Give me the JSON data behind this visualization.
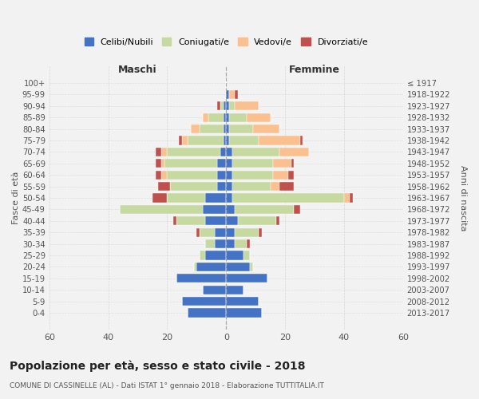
{
  "age_groups": [
    "0-4",
    "5-9",
    "10-14",
    "15-19",
    "20-24",
    "25-29",
    "30-34",
    "35-39",
    "40-44",
    "45-49",
    "50-54",
    "55-59",
    "60-64",
    "65-69",
    "70-74",
    "75-79",
    "80-84",
    "85-89",
    "90-94",
    "95-99",
    "100+"
  ],
  "birth_years": [
    "2013-2017",
    "2008-2012",
    "2003-2007",
    "1998-2002",
    "1993-1997",
    "1988-1992",
    "1983-1987",
    "1978-1982",
    "1973-1977",
    "1968-1972",
    "1963-1967",
    "1958-1962",
    "1953-1957",
    "1948-1952",
    "1943-1947",
    "1938-1942",
    "1933-1937",
    "1928-1932",
    "1923-1927",
    "1918-1922",
    "≤ 1917"
  ],
  "males": {
    "celibi": [
      13,
      15,
      8,
      17,
      10,
      7,
      4,
      4,
      7,
      8,
      7,
      3,
      3,
      3,
      2,
      1,
      1,
      1,
      1,
      0,
      0
    ],
    "coniugati": [
      0,
      0,
      0,
      0,
      1,
      2,
      3,
      5,
      10,
      28,
      13,
      16,
      17,
      18,
      18,
      12,
      8,
      5,
      1,
      0,
      0
    ],
    "vedovi": [
      0,
      0,
      0,
      0,
      0,
      0,
      0,
      0,
      0,
      0,
      0,
      0,
      2,
      1,
      2,
      2,
      3,
      2,
      0,
      0,
      0
    ],
    "divorziati": [
      0,
      0,
      0,
      0,
      0,
      0,
      0,
      1,
      1,
      0,
      5,
      4,
      2,
      2,
      2,
      1,
      0,
      0,
      1,
      0,
      0
    ]
  },
  "females": {
    "nubili": [
      12,
      11,
      6,
      14,
      8,
      6,
      3,
      3,
      4,
      3,
      2,
      2,
      2,
      2,
      2,
      1,
      1,
      1,
      1,
      1,
      0
    ],
    "coniugate": [
      0,
      0,
      0,
      0,
      1,
      2,
      4,
      8,
      13,
      20,
      38,
      13,
      14,
      14,
      16,
      10,
      8,
      6,
      2,
      0,
      0
    ],
    "vedove": [
      0,
      0,
      0,
      0,
      0,
      0,
      0,
      0,
      0,
      0,
      2,
      3,
      5,
      6,
      10,
      14,
      9,
      8,
      8,
      2,
      0
    ],
    "divorziate": [
      0,
      0,
      0,
      0,
      0,
      0,
      1,
      1,
      1,
      2,
      1,
      5,
      2,
      1,
      0,
      1,
      0,
      0,
      0,
      1,
      0
    ]
  },
  "colors": {
    "celibi": "#4472C4",
    "coniugati": "#C6D9A0",
    "vedovi": "#FAC090",
    "divorziati": "#C0504D"
  },
  "xlim": 60,
  "title": "Popolazione per età, sesso e stato civile - 2018",
  "subtitle": "COMUNE DI CASSINELLE (AL) - Dati ISTAT 1° gennaio 2018 - Elaborazione TUTTITALIA.IT",
  "ylabel_left": "Fasce di età",
  "ylabel_right": "Anni di nascita",
  "xlabel_left": "Maschi",
  "xlabel_right": "Femmine",
  "legend_labels": [
    "Celibi/Nubili",
    "Coniugati/e",
    "Vedovi/e",
    "Divorziati/e"
  ],
  "bg_color": "#F2F2F2",
  "grid_color": "#CCCCCC"
}
